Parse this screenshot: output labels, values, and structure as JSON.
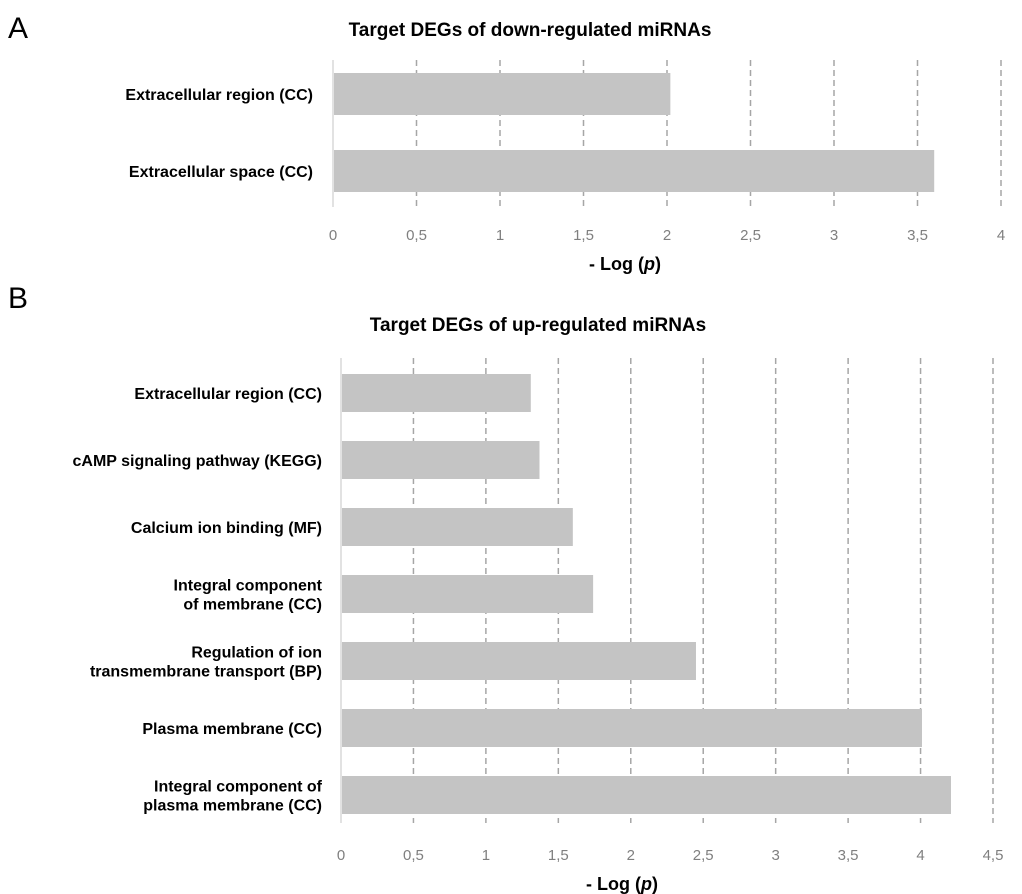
{
  "chart_data": [
    {
      "type": "bar",
      "orientation": "horizontal",
      "panel": "A",
      "title": "Target DEGs of down-regulated miRNAs",
      "categories": [
        [
          "Extracellular region (CC)"
        ],
        [
          "Extracellular space (CC)"
        ]
      ],
      "values": [
        2.02,
        3.6
      ],
      "xlim": [
        0,
        4
      ],
      "xticks": [
        "0",
        "0,5",
        "1",
        "1,5",
        "2",
        "2,5",
        "3",
        "3,5",
        "4"
      ],
      "xlabel_prefix": "- Log (",
      "xlabel_var": "p",
      "xlabel_suffix": ")",
      "grid": "vertical dashed",
      "bar_color": "#c4c4c4"
    },
    {
      "type": "bar",
      "orientation": "horizontal",
      "panel": "B",
      "title": "Target DEGs of up-regulated miRNAs",
      "categories": [
        [
          "Extracellular region (CC)"
        ],
        [
          "cAMP signaling pathway (KEGG)"
        ],
        [
          "Calcium ion binding (MF)"
        ],
        [
          "Integral component",
          "of membrane (CC)"
        ],
        [
          "Regulation of ion",
          "transmembrane transport (BP)"
        ],
        [
          "Plasma membrane (CC)"
        ],
        [
          "Integral component of",
          "plasma membrane (CC)"
        ]
      ],
      "values": [
        1.31,
        1.37,
        1.6,
        1.74,
        2.45,
        4.01,
        4.21
      ],
      "xlim": [
        0,
        4.5
      ],
      "xticks": [
        "0",
        "0,5",
        "1",
        "1,5",
        "2",
        "2,5",
        "3",
        "3,5",
        "4",
        "4,5"
      ],
      "xlabel_prefix": "- Log (",
      "xlabel_var": "p",
      "xlabel_suffix": ")",
      "grid": "vertical dashed",
      "bar_color": "#c4c4c4"
    }
  ],
  "colors": {
    "bar": "#c4c4c4",
    "grid": "#a6a6a6",
    "axis": "#d9d9d9",
    "tick_text": "#7f7f7f"
  }
}
